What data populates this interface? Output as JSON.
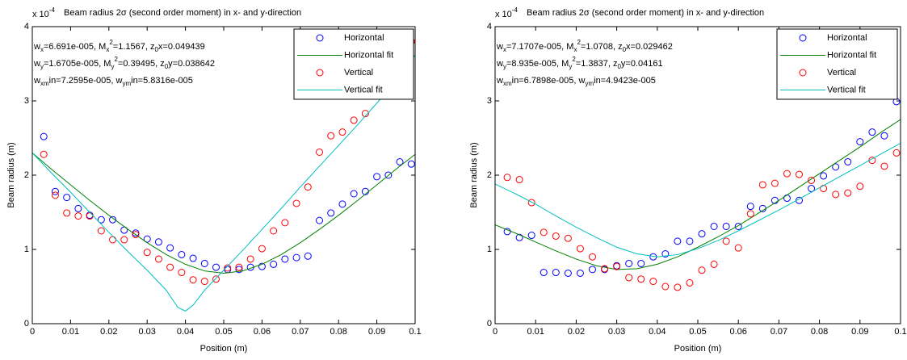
{
  "chart_data": [
    {
      "type": "scatter-fit",
      "title": "Beam radius 2σ (second order moment) in x- and y-direction",
      "xlabel": "Position (m)",
      "ylabel": "Beam radius (m)",
      "y_multiplier": [
        {
          "text": "x 10"
        },
        {
          "text": "-4",
          "script": "sup"
        }
      ],
      "xlim": [
        0,
        0.1
      ],
      "ylim": [
        0,
        4
      ],
      "xticks": [
        0,
        0.01,
        0.02,
        0.03,
        0.04,
        0.05,
        0.06,
        0.07,
        0.08,
        0.09,
        0.1
      ],
      "yticks": [
        0,
        1,
        2,
        3,
        4
      ],
      "legend": "upper right",
      "annotations": [
        [
          {
            "text": "w"
          },
          {
            "text": "x",
            "script": "sub"
          },
          {
            "text": "=6.691e-005, M"
          },
          {
            "text": "x",
            "script": "sub"
          },
          {
            "text": "2",
            "script": "sup"
          },
          {
            "text": "=1.1567, z"
          },
          {
            "text": "0",
            "script": "sub"
          },
          {
            "text": "x=0.049439"
          }
        ],
        [
          {
            "text": "w"
          },
          {
            "text": "y",
            "script": "sub"
          },
          {
            "text": "=1.6705e-005, M"
          },
          {
            "text": "y",
            "script": "sub"
          },
          {
            "text": "2",
            "script": "sup"
          },
          {
            "text": "=0.39495, z"
          },
          {
            "text": "0",
            "script": "sub"
          },
          {
            "text": "y=0.038642"
          }
        ],
        [
          {
            "text": "w"
          },
          {
            "text": "xm",
            "script": "sub"
          },
          {
            "text": "in=7.2595e-005, w"
          },
          {
            "text": "ym",
            "script": "sub"
          },
          {
            "text": "in=5.8316e-005"
          }
        ]
      ],
      "series": [
        {
          "name": "Horizontal",
          "style": "circle",
          "color": "#0000ff",
          "x": [
            0.003,
            0.006,
            0.009,
            0.012,
            0.015,
            0.018,
            0.021,
            0.024,
            0.027,
            0.03,
            0.033,
            0.036,
            0.039,
            0.042,
            0.045,
            0.048,
            0.051,
            0.054,
            0.057,
            0.06,
            0.063,
            0.066,
            0.069,
            0.072,
            0.075,
            0.078,
            0.081,
            0.084,
            0.087,
            0.09,
            0.093,
            0.096,
            0.099
          ],
          "values": [
            2.52,
            1.78,
            1.7,
            1.55,
            1.46,
            1.4,
            1.4,
            1.26,
            1.22,
            1.14,
            1.1,
            1.02,
            0.93,
            0.88,
            0.81,
            0.76,
            0.73,
            0.73,
            0.76,
            0.77,
            0.8,
            0.87,
            0.89,
            0.91,
            1.39,
            1.49,
            1.61,
            1.75,
            1.78,
            1.98,
            2.0,
            2.18,
            2.15
          ]
        },
        {
          "name": "Horizontal fit",
          "style": "line",
          "color": "#008000",
          "x": [
            0,
            0.005,
            0.01,
            0.015,
            0.02,
            0.025,
            0.03,
            0.035,
            0.04,
            0.045,
            0.05,
            0.055,
            0.06,
            0.065,
            0.07,
            0.075,
            0.08,
            0.085,
            0.09,
            0.095,
            0.1
          ],
          "values": [
            2.3,
            2.08,
            1.87,
            1.66,
            1.46,
            1.27,
            1.09,
            0.93,
            0.8,
            0.71,
            0.68,
            0.71,
            0.8,
            0.93,
            1.09,
            1.27,
            1.46,
            1.66,
            1.87,
            2.08,
            2.28
          ]
        },
        {
          "name": "Vertical",
          "style": "circle",
          "color": "#ff0000",
          "x": [
            0.003,
            0.006,
            0.009,
            0.012,
            0.015,
            0.018,
            0.021,
            0.024,
            0.027,
            0.03,
            0.033,
            0.036,
            0.039,
            0.042,
            0.045,
            0.048,
            0.051,
            0.054,
            0.057,
            0.06,
            0.063,
            0.066,
            0.069,
            0.072,
            0.075,
            0.078,
            0.081,
            0.084,
            0.087,
            0.099
          ],
          "values": [
            2.28,
            1.73,
            1.49,
            1.45,
            1.45,
            1.25,
            1.13,
            1.13,
            1.2,
            0.96,
            0.87,
            0.76,
            0.69,
            0.59,
            0.57,
            0.6,
            0.75,
            0.76,
            0.87,
            1.01,
            1.25,
            1.36,
            1.62,
            1.84,
            2.31,
            2.53,
            2.58,
            2.74,
            2.83,
            3.8
          ]
        },
        {
          "name": "Vertical fit",
          "style": "line",
          "color": "#00bfbf",
          "x": [
            0,
            0.005,
            0.01,
            0.015,
            0.02,
            0.025,
            0.03,
            0.035,
            0.038,
            0.04,
            0.042,
            0.045,
            0.05,
            0.055,
            0.06,
            0.065,
            0.07,
            0.075,
            0.08,
            0.085,
            0.09,
            0.095,
            0.1
          ],
          "values": [
            2.3,
            2.03,
            1.77,
            1.5,
            1.23,
            0.97,
            0.72,
            0.45,
            0.22,
            0.17,
            0.25,
            0.45,
            0.72,
            0.99,
            1.27,
            1.55,
            1.84,
            2.12,
            2.4,
            2.68,
            2.97,
            3.26,
            3.62
          ]
        }
      ]
    },
    {
      "type": "scatter-fit",
      "title": "Beam radius 2σ (second order moment) in x- and y-direction",
      "xlabel": "Position (m)",
      "ylabel": "Beam radius (m)",
      "y_multiplier": [
        {
          "text": "x 10"
        },
        {
          "text": "-4",
          "script": "sup"
        }
      ],
      "xlim": [
        0,
        0.1
      ],
      "ylim": [
        0,
        4
      ],
      "xticks": [
        0,
        0.01,
        0.02,
        0.03,
        0.04,
        0.05,
        0.06,
        0.07,
        0.08,
        0.09,
        0.1
      ],
      "yticks": [
        0,
        1,
        2,
        3,
        4
      ],
      "legend": "upper right",
      "annotations": [
        [
          {
            "text": "w"
          },
          {
            "text": "x",
            "script": "sub"
          },
          {
            "text": "=7.1707e-005, M"
          },
          {
            "text": "x",
            "script": "sub"
          },
          {
            "text": "2",
            "script": "sup"
          },
          {
            "text": "=1.0708, z"
          },
          {
            "text": "0",
            "script": "sub"
          },
          {
            "text": "x=0.029462"
          }
        ],
        [
          {
            "text": "w"
          },
          {
            "text": "y",
            "script": "sub"
          },
          {
            "text": "=8.935e-005, M"
          },
          {
            "text": "y",
            "script": "sub"
          },
          {
            "text": "2",
            "script": "sup"
          },
          {
            "text": "=1.3837, z"
          },
          {
            "text": "0",
            "script": "sub"
          },
          {
            "text": "y=0.04161"
          }
        ],
        [
          {
            "text": "w"
          },
          {
            "text": "xm",
            "script": "sub"
          },
          {
            "text": "in=6.7898e-005, w"
          },
          {
            "text": "ym",
            "script": "sub"
          },
          {
            "text": "in=4.9423e-005"
          }
        ]
      ],
      "series": [
        {
          "name": "Horizontal",
          "style": "circle",
          "color": "#0000ff",
          "x": [
            0.003,
            0.006,
            0.009,
            0.012,
            0.015,
            0.018,
            0.021,
            0.024,
            0.027,
            0.03,
            0.033,
            0.036,
            0.039,
            0.042,
            0.045,
            0.048,
            0.051,
            0.054,
            0.057,
            0.06,
            0.063,
            0.066,
            0.069,
            0.072,
            0.075,
            0.078,
            0.081,
            0.084,
            0.087,
            0.09,
            0.093,
            0.096,
            0.099
          ],
          "values": [
            1.24,
            1.16,
            1.19,
            0.69,
            0.69,
            0.68,
            0.68,
            0.73,
            0.73,
            0.78,
            0.81,
            0.81,
            0.9,
            0.94,
            1.11,
            1.11,
            1.21,
            1.31,
            1.31,
            1.31,
            1.58,
            1.55,
            1.66,
            1.69,
            1.66,
            1.82,
            1.99,
            2.11,
            2.18,
            2.45,
            2.58,
            2.53,
            2.99
          ]
        },
        {
          "name": "Horizontal fit",
          "style": "line",
          "color": "#008000",
          "x": [
            0,
            0.005,
            0.01,
            0.015,
            0.02,
            0.025,
            0.03,
            0.035,
            0.04,
            0.045,
            0.05,
            0.055,
            0.06,
            0.065,
            0.07,
            0.075,
            0.08,
            0.085,
            0.09,
            0.095,
            0.1
          ],
          "values": [
            1.33,
            1.22,
            1.1,
            0.98,
            0.87,
            0.78,
            0.73,
            0.74,
            0.8,
            0.9,
            1.03,
            1.17,
            1.32,
            1.49,
            1.66,
            1.84,
            2.02,
            2.2,
            2.38,
            2.57,
            2.75
          ]
        },
        {
          "name": "Vertical",
          "style": "circle",
          "color": "#ff0000",
          "x": [
            0.003,
            0.006,
            0.009,
            0.012,
            0.015,
            0.018,
            0.021,
            0.024,
            0.027,
            0.03,
            0.033,
            0.036,
            0.039,
            0.042,
            0.045,
            0.048,
            0.051,
            0.054,
            0.057,
            0.06,
            0.063,
            0.066,
            0.069,
            0.072,
            0.075,
            0.078,
            0.081,
            0.084,
            0.087,
            0.09,
            0.093,
            0.096,
            0.099
          ],
          "values": [
            1.97,
            1.94,
            1.63,
            1.23,
            1.18,
            1.15,
            1.01,
            0.9,
            0.74,
            0.77,
            0.62,
            0.6,
            0.57,
            0.5,
            0.49,
            0.55,
            0.72,
            0.8,
            1.11,
            1.02,
            1.48,
            1.87,
            1.89,
            2.02,
            2.01,
            1.93,
            1.82,
            1.74,
            1.76,
            1.85,
            2.2,
            2.12,
            2.3
          ]
        },
        {
          "name": "Vertical fit",
          "style": "line",
          "color": "#00bfbf",
          "x": [
            0,
            0.005,
            0.01,
            0.015,
            0.02,
            0.025,
            0.03,
            0.035,
            0.04,
            0.045,
            0.05,
            0.055,
            0.06,
            0.065,
            0.07,
            0.075,
            0.08,
            0.085,
            0.09,
            0.095,
            0.1
          ],
          "values": [
            1.88,
            1.75,
            1.61,
            1.45,
            1.3,
            1.16,
            1.03,
            0.94,
            0.9,
            0.93,
            1.01,
            1.12,
            1.25,
            1.39,
            1.53,
            1.68,
            1.83,
            1.98,
            2.13,
            2.28,
            2.43
          ]
        }
      ]
    }
  ]
}
